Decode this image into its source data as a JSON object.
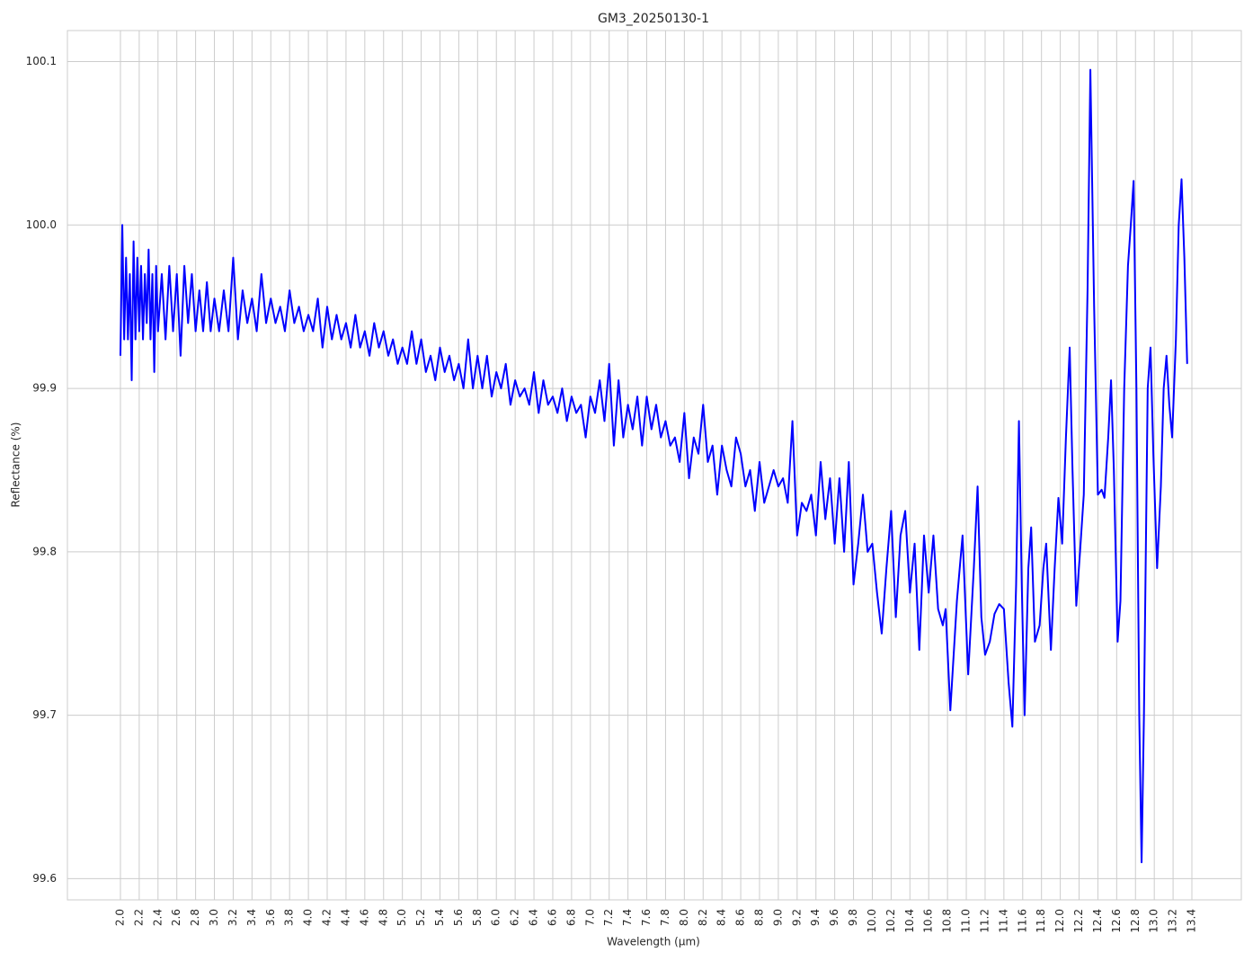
{
  "chart_data": {
    "type": "line",
    "title": "GM3_20250130-1",
    "xlabel": "Wavelength (µm)",
    "ylabel": "Reflectance (%)",
    "color": "#0000ff",
    "grid": true,
    "xlim": [
      1.436,
      13.926
    ],
    "ylim": [
      99.587,
      100.119
    ],
    "xticks": [
      {
        "value": 2.0,
        "label": "2.0"
      },
      2.2,
      2.4,
      2.6,
      2.8,
      {
        "value": 3.0,
        "label": "3.0"
      },
      3.2,
      3.4,
      3.6,
      3.8,
      {
        "value": 4.0,
        "label": "4.0"
      },
      4.2,
      4.4,
      4.6,
      4.8,
      {
        "value": 5.0,
        "label": "5.0"
      },
      5.2,
      5.4,
      5.6,
      5.8,
      {
        "value": 6.0,
        "label": "6.0"
      },
      6.2,
      6.4,
      6.6,
      6.8,
      {
        "value": 7.0,
        "label": "7.0"
      },
      7.2,
      7.4,
      7.6,
      7.8,
      {
        "value": 8.0,
        "label": "8.0"
      },
      8.2,
      8.4,
      8.6,
      8.8,
      {
        "value": 9.0,
        "label": "9.0"
      },
      9.2,
      9.4,
      9.6,
      9.8,
      {
        "value": 10.0,
        "label": "10.0"
      },
      10.2,
      10.4,
      10.6,
      10.8,
      {
        "value": 11.0,
        "label": "11.0"
      },
      11.2,
      11.4,
      11.6,
      11.8,
      {
        "value": 12.0,
        "label": "12.0"
      },
      12.2,
      12.4,
      12.6,
      12.8,
      {
        "value": 13.0,
        "label": "13.0"
      },
      13.2,
      13.4
    ],
    "yticks": [
      99.6,
      99.7,
      99.8,
      99.9,
      {
        "value": 100.0,
        "label": "100.0"
      },
      100.1
    ],
    "x": [
      2.0,
      2.02,
      2.04,
      2.06,
      2.08,
      2.1,
      2.12,
      2.14,
      2.16,
      2.18,
      2.2,
      2.22,
      2.24,
      2.26,
      2.28,
      2.3,
      2.32,
      2.34,
      2.36,
      2.38,
      2.4,
      2.44,
      2.48,
      2.52,
      2.56,
      2.6,
      2.64,
      2.68,
      2.72,
      2.76,
      2.8,
      2.84,
      2.88,
      2.92,
      2.96,
      3.0,
      3.05,
      3.1,
      3.15,
      3.2,
      3.25,
      3.3,
      3.35,
      3.4,
      3.45,
      3.5,
      3.55,
      3.6,
      3.65,
      3.7,
      3.75,
      3.8,
      3.85,
      3.9,
      3.95,
      4.0,
      4.05,
      4.1,
      4.15,
      4.2,
      4.25,
      4.3,
      4.35,
      4.4,
      4.45,
      4.5,
      4.55,
      4.6,
      4.65,
      4.7,
      4.75,
      4.8,
      4.85,
      4.9,
      4.95,
      5.0,
      5.05,
      5.1,
      5.15,
      5.2,
      5.25,
      5.3,
      5.35,
      5.4,
      5.45,
      5.5,
      5.55,
      5.6,
      5.65,
      5.7,
      5.75,
      5.8,
      5.85,
      5.9,
      5.95,
      6.0,
      6.05,
      6.1,
      6.15,
      6.2,
      6.25,
      6.3,
      6.35,
      6.4,
      6.45,
      6.5,
      6.55,
      6.6,
      6.65,
      6.7,
      6.75,
      6.8,
      6.85,
      6.9,
      6.95,
      7.0,
      7.05,
      7.1,
      7.15,
      7.2,
      7.25,
      7.3,
      7.35,
      7.4,
      7.45,
      7.5,
      7.55,
      7.6,
      7.65,
      7.7,
      7.75,
      7.8,
      7.85,
      7.9,
      7.95,
      8.0,
      8.05,
      8.1,
      8.15,
      8.2,
      8.25,
      8.3,
      8.35,
      8.4,
      8.45,
      8.5,
      8.55,
      8.6,
      8.65,
      8.7,
      8.75,
      8.8,
      8.85,
      8.9,
      8.95,
      9.0,
      9.05,
      9.1,
      9.15,
      9.2,
      9.25,
      9.3,
      9.35,
      9.4,
      9.45,
      9.5,
      9.55,
      9.6,
      9.65,
      9.7,
      9.75,
      9.8,
      9.85,
      9.9,
      9.95,
      10.0,
      10.05,
      10.1,
      10.15,
      10.2,
      10.25,
      10.3,
      10.35,
      10.4,
      10.45,
      10.5,
      10.55,
      10.6,
      10.65,
      10.7,
      10.75,
      10.78,
      10.83,
      10.9,
      10.96,
      11.02,
      11.08,
      11.12,
      11.16,
      11.2,
      11.25,
      11.3,
      11.35,
      11.4,
      11.45,
      11.49,
      11.53,
      11.56,
      11.59,
      11.62,
      11.66,
      11.69,
      11.73,
      11.78,
      11.82,
      11.85,
      11.9,
      11.94,
      11.98,
      12.02,
      12.06,
      12.1,
      12.13,
      12.17,
      12.21,
      12.25,
      12.29,
      12.32,
      12.36,
      12.4,
      12.44,
      12.47,
      12.51,
      12.54,
      12.57,
      12.61,
      12.64,
      12.68,
      12.72,
      12.75,
      12.78,
      12.81,
      12.84,
      12.865,
      12.89,
      12.93,
      12.96,
      12.99,
      13.03,
      13.07,
      13.1,
      13.13,
      13.16,
      13.19,
      13.23,
      13.26,
      13.29,
      13.32,
      13.35
    ],
    "values": [
      99.92,
      100.0,
      99.93,
      99.98,
      99.93,
      99.97,
      99.905,
      99.99,
      99.93,
      99.98,
      99.935,
      99.975,
      99.93,
      99.97,
      99.94,
      99.985,
      99.93,
      99.97,
      99.91,
      99.975,
      99.935,
      99.97,
      99.93,
      99.975,
      99.935,
      99.97,
      99.92,
      99.975,
      99.94,
      99.97,
      99.935,
      99.96,
      99.935,
      99.965,
      99.935,
      99.955,
      99.935,
      99.96,
      99.935,
      99.98,
      99.93,
      99.96,
      99.94,
      99.955,
      99.935,
      99.97,
      99.94,
      99.955,
      99.94,
      99.95,
      99.935,
      99.96,
      99.94,
      99.95,
      99.935,
      99.945,
      99.935,
      99.955,
      99.925,
      99.95,
      99.93,
      99.945,
      99.93,
      99.94,
      99.925,
      99.945,
      99.925,
      99.935,
      99.92,
      99.94,
      99.925,
      99.935,
      99.92,
      99.93,
      99.915,
      99.925,
      99.915,
      99.935,
      99.915,
      99.93,
      99.91,
      99.92,
      99.905,
      99.925,
      99.91,
      99.92,
      99.905,
      99.915,
      99.9,
      99.93,
      99.9,
      99.92,
      99.9,
      99.92,
      99.895,
      99.91,
      99.9,
      99.915,
      99.89,
      99.905,
      99.895,
      99.9,
      99.89,
      99.91,
      99.885,
      99.905,
      99.89,
      99.895,
      99.885,
      99.9,
      99.88,
      99.895,
      99.885,
      99.89,
      99.87,
      99.895,
      99.885,
      99.905,
      99.88,
      99.915,
      99.865,
      99.905,
      99.87,
      99.89,
      99.875,
      99.895,
      99.865,
      99.895,
      99.875,
      99.89,
      99.87,
      99.88,
      99.865,
      99.87,
      99.855,
      99.885,
      99.845,
      99.87,
      99.86,
      99.89,
      99.855,
      99.865,
      99.835,
      99.865,
      99.85,
      99.84,
      99.87,
      99.86,
      99.84,
      99.85,
      99.825,
      99.855,
      99.83,
      99.84,
      99.85,
      99.84,
      99.845,
      99.83,
      99.88,
      99.81,
      99.83,
      99.825,
      99.835,
      99.81,
      99.855,
      99.82,
      99.845,
      99.805,
      99.845,
      99.8,
      99.855,
      99.78,
      99.805,
      99.835,
      99.8,
      99.805,
      99.775,
      99.75,
      99.79,
      99.825,
      99.76,
      99.81,
      99.825,
      99.775,
      99.805,
      99.74,
      99.81,
      99.775,
      99.81,
      99.765,
      99.755,
      99.765,
      99.703,
      99.77,
      99.81,
      99.725,
      99.79,
      99.84,
      99.76,
      99.737,
      99.745,
      99.762,
      99.768,
      99.765,
      99.72,
      99.693,
      99.78,
      99.88,
      99.78,
      99.7,
      99.79,
      99.815,
      99.745,
      99.755,
      99.79,
      99.805,
      99.74,
      99.79,
      99.833,
      99.805,
      99.87,
      99.925,
      99.85,
      99.767,
      99.8,
      99.835,
      99.96,
      100.095,
      99.95,
      99.835,
      99.838,
      99.833,
      99.87,
      99.905,
      99.85,
      99.745,
      99.77,
      99.9,
      99.975,
      100.0,
      100.027,
      99.9,
      99.7,
      99.61,
      99.7,
      99.9,
      99.925,
      99.86,
      99.79,
      99.84,
      99.9,
      99.92,
      99.89,
      99.87,
      99.93,
      100.0,
      100.028,
      99.98,
      99.915
    ]
  }
}
